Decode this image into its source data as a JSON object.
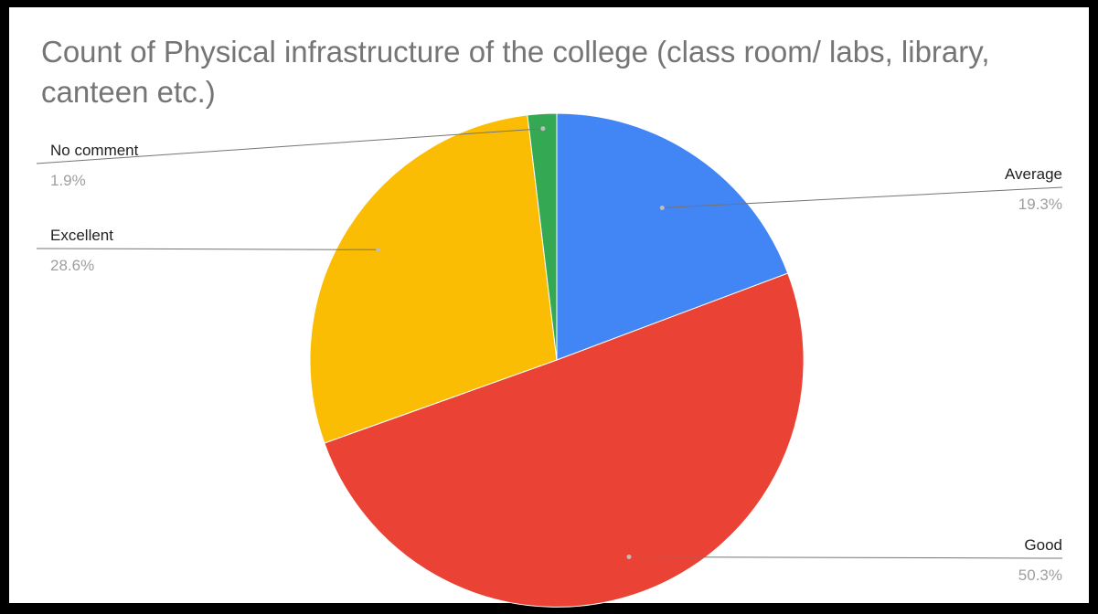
{
  "chart_data": {
    "type": "pie",
    "title": "Count of Physical infrastructure of the college (class room/ labs, library, canteen etc.)",
    "slices": [
      {
        "label": "Average",
        "percent_label": "19.3%",
        "value": 19.3,
        "color": "#4285f4"
      },
      {
        "label": "Good",
        "percent_label": "50.3%",
        "value": 50.3,
        "color": "#ea4335"
      },
      {
        "label": "Excellent",
        "percent_label": "28.6%",
        "value": 28.6,
        "color": "#fbbc04"
      },
      {
        "label": "No comment",
        "percent_label": "1.9%",
        "value": 1.9,
        "color": "#34a853"
      }
    ],
    "start_angle_deg": 0,
    "direction": "clockwise",
    "legend": "labeled",
    "label_color": "#222222",
    "percent_color": "#9e9e9e",
    "leader_color": "#757575"
  }
}
